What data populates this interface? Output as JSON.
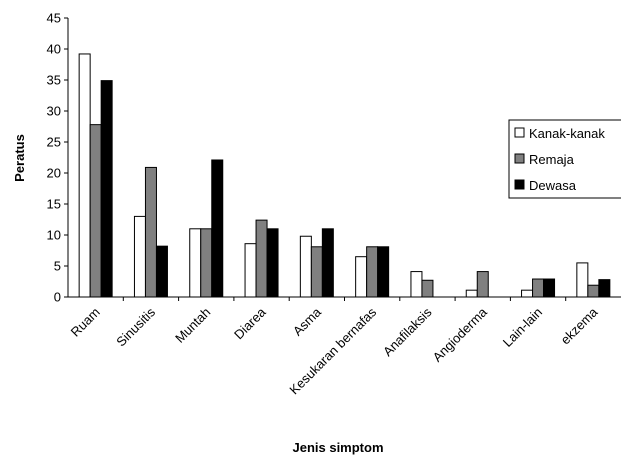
{
  "chart_data": {
    "type": "bar",
    "xlabel": "Jenis simptom",
    "ylabel": "Peratus",
    "ylim": [
      0,
      45
    ],
    "yticks": [
      0,
      5,
      10,
      15,
      20,
      25,
      30,
      35,
      40,
      45
    ],
    "grid": false,
    "legend_position": "right",
    "categories": [
      "Ruam",
      "Sinusitis",
      "Muntah",
      "Diarea",
      "Asma",
      "Kesukaran bernafas",
      "Anafilaksis",
      "Angioderma",
      "Lain-lain",
      "ekzema"
    ],
    "series": [
      {
        "name": "Kanak-kanak",
        "color": "#ffffff",
        "values": [
          39.2,
          13.0,
          11.0,
          8.6,
          9.8,
          6.5,
          4.1,
          1.1,
          1.1,
          5.5
        ]
      },
      {
        "name": "Remaja",
        "color": "#808080",
        "values": [
          27.8,
          20.9,
          11.0,
          12.4,
          8.1,
          8.1,
          2.7,
          4.1,
          2.9,
          1.9
        ]
      },
      {
        "name": "Dewasa",
        "color": "#000000",
        "values": [
          34.9,
          8.2,
          22.1,
          11.0,
          11.0,
          8.1,
          0,
          0,
          2.9,
          2.8
        ]
      }
    ]
  }
}
